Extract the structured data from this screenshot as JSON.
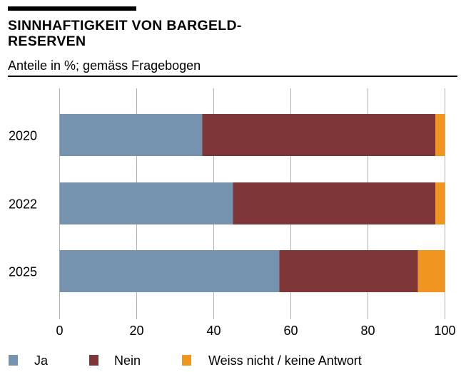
{
  "title": "SINNHAFTIGKEIT VON BARGELD-\nRESERVEN",
  "title_lines": [
    "SINNHAFTIGKEIT VON BARGELD-",
    "RESERVEN"
  ],
  "subtitle": "Anteile in %; gemäss Fragebogen",
  "chart_data": {
    "type": "bar",
    "orientation": "horizontal",
    "stacked": true,
    "categories": [
      "2020",
      "2022",
      "2025"
    ],
    "series": [
      {
        "name": "Ja",
        "color": "#7592ae",
        "values": [
          37,
          45,
          57
        ]
      },
      {
        "name": "Nein",
        "color": "#7e3638",
        "values": [
          60.5,
          52.5,
          36
        ]
      },
      {
        "name": "Weiss nicht / keine Antwort",
        "color": "#f0951f",
        "values": [
          2.5,
          2.5,
          7
        ]
      }
    ],
    "xlim": [
      0,
      100
    ],
    "xticks": [
      "0",
      "20",
      "40",
      "60",
      "80",
      "100"
    ],
    "grid": "vertical",
    "gridline_color": "#b3b3b3",
    "legend_placement": "bottom"
  }
}
